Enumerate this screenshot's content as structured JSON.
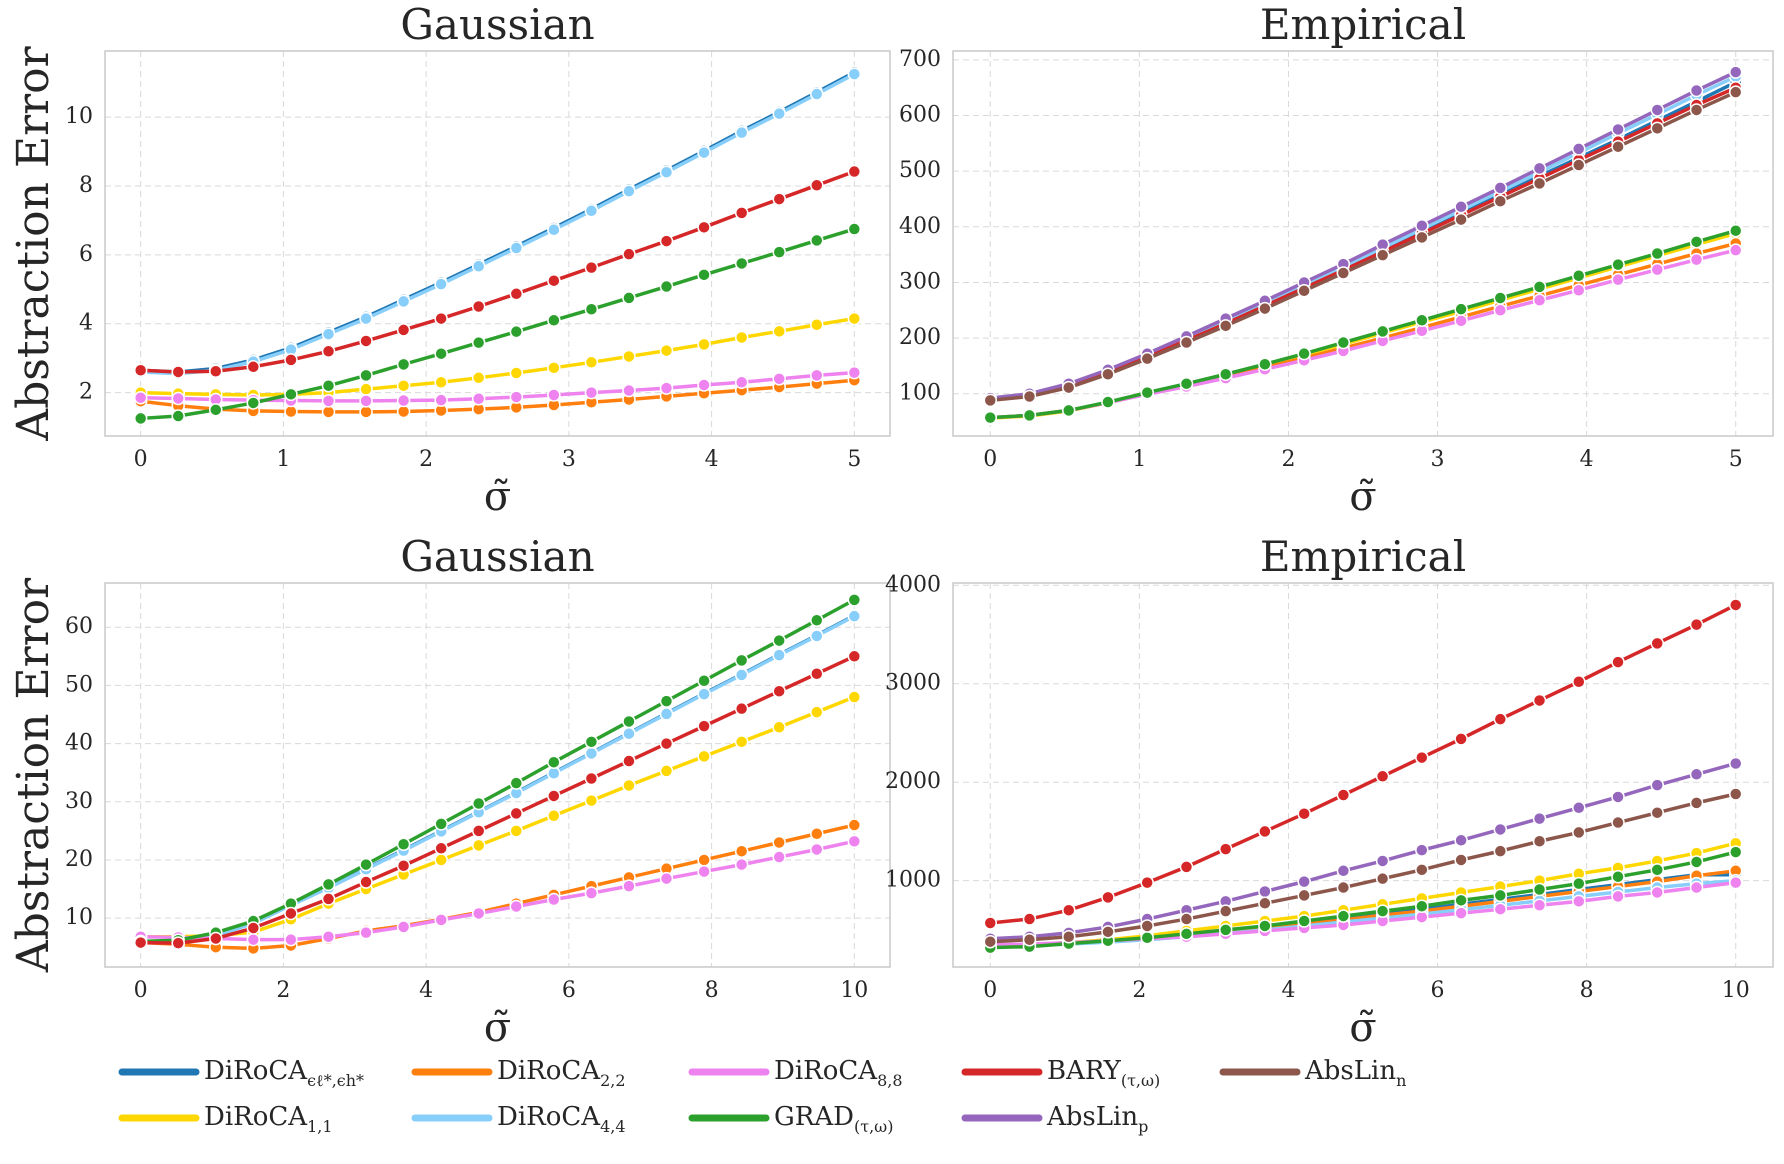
{
  "legend": [
    {
      "name": "DiRoCA",
      "sub": "ϵℓ*,ϵh*",
      "color": "#1f77b4"
    },
    {
      "name": "DiRoCA",
      "sub": "1,1",
      "color": "#ffd700"
    },
    {
      "name": "DiRoCA",
      "sub": "2,2",
      "color": "#ff7f0e"
    },
    {
      "name": "DiRoCA",
      "sub": "4,4",
      "color": "#87cefa"
    },
    {
      "name": "DiRoCA",
      "sub": "8,8",
      "color": "#ee82ee"
    },
    {
      "name": "GRAD",
      "sub": "(τ,ω)",
      "color": "#2ca02c"
    },
    {
      "name": "BARY",
      "sub": "(τ,ω)",
      "color": "#d62728"
    },
    {
      "name": "AbsLin",
      "sub": "p",
      "color": "#9467bd"
    },
    {
      "name": "AbsLin",
      "sub": "n",
      "color": "#8c564b"
    }
  ],
  "chart_data": [
    {
      "type": "line",
      "title": "Gaussian",
      "x_label": "σ̃",
      "y_label": "Abstraction Error",
      "x": [
        0,
        0.263,
        0.526,
        0.789,
        1.053,
        1.316,
        1.579,
        1.842,
        2.105,
        2.368,
        2.632,
        2.895,
        3.158,
        3.421,
        3.684,
        3.947,
        4.211,
        4.474,
        4.737,
        5
      ],
      "xlim": [
        -0.25,
        5.25
      ],
      "xticks": [
        0,
        1,
        2,
        3,
        4,
        5
      ],
      "ylim": [
        0.74,
        11.92
      ],
      "yticks": [
        2,
        4,
        6,
        8,
        10
      ],
      "grid": true,
      "series": [
        {
          "color": "#1f77b4",
          "values": [
            2.65,
            2.6,
            2.7,
            2.95,
            3.3,
            3.75,
            4.2,
            4.7,
            5.2,
            5.72,
            6.25,
            6.78,
            7.33,
            7.9,
            8.45,
            9.02,
            9.6,
            10.15,
            10.72,
            11.3
          ]
        },
        {
          "color": "#ffd700",
          "values": [
            2.0,
            1.97,
            1.95,
            1.93,
            1.95,
            2.0,
            2.1,
            2.2,
            2.3,
            2.43,
            2.57,
            2.72,
            2.88,
            3.05,
            3.22,
            3.4,
            3.6,
            3.78,
            3.97,
            4.15
          ]
        },
        {
          "color": "#ff7f0e",
          "values": [
            1.75,
            1.62,
            1.52,
            1.47,
            1.45,
            1.44,
            1.44,
            1.45,
            1.48,
            1.52,
            1.57,
            1.64,
            1.72,
            1.8,
            1.89,
            1.98,
            2.07,
            2.16,
            2.26,
            2.36
          ]
        },
        {
          "color": "#87cefa",
          "values": [
            2.6,
            2.55,
            2.65,
            2.9,
            3.25,
            3.7,
            4.15,
            4.65,
            5.15,
            5.67,
            6.2,
            6.73,
            7.28,
            7.85,
            8.4,
            8.97,
            9.55,
            10.1,
            10.67,
            11.25
          ]
        },
        {
          "color": "#ee82ee",
          "values": [
            1.85,
            1.83,
            1.8,
            1.78,
            1.77,
            1.76,
            1.76,
            1.77,
            1.78,
            1.82,
            1.87,
            1.93,
            2.0,
            2.06,
            2.13,
            2.22,
            2.3,
            2.4,
            2.5,
            2.58
          ]
        },
        {
          "color": "#2ca02c",
          "values": [
            1.25,
            1.32,
            1.5,
            1.7,
            1.95,
            2.2,
            2.5,
            2.82,
            3.13,
            3.45,
            3.77,
            4.1,
            4.42,
            4.75,
            5.08,
            5.42,
            5.75,
            6.08,
            6.42,
            6.75
          ]
        },
        {
          "color": "#d62728",
          "values": [
            2.65,
            2.6,
            2.62,
            2.75,
            2.95,
            3.2,
            3.5,
            3.82,
            4.15,
            4.5,
            4.87,
            5.25,
            5.63,
            6.02,
            6.4,
            6.8,
            7.22,
            7.62,
            8.02,
            8.42
          ]
        }
      ]
    },
    {
      "type": "line",
      "title": "Empirical",
      "x_label": "σ̃",
      "x": [
        0,
        0.263,
        0.526,
        0.789,
        1.053,
        1.316,
        1.579,
        1.842,
        2.105,
        2.368,
        2.632,
        2.895,
        3.158,
        3.421,
        3.684,
        3.947,
        4.211,
        4.474,
        4.737,
        5
      ],
      "xlim": [
        -0.25,
        5.25
      ],
      "xticks": [
        0,
        1,
        2,
        3,
        4,
        5
      ],
      "ylim": [
        24,
        716
      ],
      "yticks": [
        100,
        200,
        300,
        400,
        500,
        600,
        700
      ],
      "grid": true,
      "series": [
        {
          "color": "#1f77b4",
          "values": [
            90,
            97,
            114,
            139,
            167,
            197,
            228,
            260,
            292,
            325,
            358,
            391,
            424,
            457,
            491,
            524,
            557,
            591,
            625,
            660
          ]
        },
        {
          "color": "#ffd700",
          "values": [
            56,
            60,
            69,
            84,
            100,
            116,
            133,
            151,
            170,
            189,
            209,
            229,
            248,
            268,
            288,
            308,
            328,
            348,
            368,
            388
          ]
        },
        {
          "color": "#ff7f0e",
          "values": [
            57,
            61,
            70,
            84,
            100,
            115,
            131,
            147,
            164,
            182,
            200,
            219,
            238,
            257,
            276,
            295,
            314,
            333,
            352,
            370
          ]
        },
        {
          "color": "#87cefa",
          "values": [
            90,
            98,
            115,
            140,
            168,
            199,
            230,
            262,
            295,
            328,
            362,
            396,
            430,
            464,
            498,
            533,
            568,
            602,
            637,
            670
          ]
        },
        {
          "color": "#ee82ee",
          "values": [
            57,
            61,
            70,
            84,
            99,
            113,
            128,
            144,
            160,
            177,
            195,
            213,
            231,
            250,
            268,
            286,
            305,
            323,
            341,
            358
          ]
        },
        {
          "color": "#2ca02c",
          "values": [
            57,
            61,
            70,
            85,
            102,
            118,
            135,
            153,
            172,
            192,
            212,
            232,
            252,
            272,
            292,
            312,
            332,
            352,
            373,
            393
          ]
        },
        {
          "color": "#d62728",
          "values": [
            89,
            96,
            113,
            138,
            166,
            196,
            226,
            258,
            290,
            322,
            355,
            388,
            421,
            454,
            487,
            520,
            553,
            586,
            619,
            650
          ]
        },
        {
          "color": "#9467bd",
          "values": [
            92,
            100,
            118,
            143,
            172,
            203,
            235,
            267,
            300,
            333,
            368,
            402,
            436,
            470,
            505,
            540,
            575,
            610,
            645,
            678
          ]
        },
        {
          "color": "#8c564b",
          "values": [
            88,
            95,
            111,
            135,
            163,
            192,
            222,
            253,
            285,
            317,
            349,
            381,
            413,
            446,
            478,
            511,
            544,
            577,
            610,
            642
          ]
        }
      ]
    },
    {
      "type": "line",
      "title": "Gaussian",
      "x_label": "σ̃",
      "y_label": "Abstraction Error",
      "x": [
        0,
        0.526,
        1.053,
        1.579,
        2.105,
        2.632,
        3.158,
        3.684,
        4.211,
        4.737,
        5.263,
        5.789,
        6.316,
        6.842,
        7.368,
        7.895,
        8.421,
        8.947,
        9.474,
        10
      ],
      "xlim": [
        -0.5,
        10.5
      ],
      "xticks": [
        0,
        2,
        4,
        6,
        8,
        10
      ],
      "ylim": [
        1.6,
        67.6
      ],
      "yticks": [
        10,
        20,
        30,
        40,
        50,
        60
      ],
      "grid": true,
      "series": [
        {
          "color": "#1f77b4",
          "values": [
            5.8,
            5.9,
            7,
            9.2,
            12.3,
            15.3,
            18.5,
            21.7,
            25,
            28.3,
            31.6,
            35,
            38.4,
            41.8,
            45.2,
            48.6,
            51.9,
            55.3,
            58.6,
            62
          ]
        },
        {
          "color": "#ffd700",
          "values": [
            6.8,
            6.8,
            7,
            7.6,
            9.8,
            12.5,
            15,
            17.5,
            20,
            22.5,
            25,
            27.6,
            30.2,
            32.8,
            35.3,
            37.8,
            40.3,
            42.8,
            45.4,
            48
          ]
        },
        {
          "color": "#ff7f0e",
          "values": [
            5.8,
            5.5,
            5,
            4.8,
            5.3,
            6.5,
            7.8,
            8.7,
            9.8,
            11,
            12.5,
            14,
            15.5,
            17,
            18.5,
            20,
            21.5,
            23,
            24.5,
            26
          ]
        },
        {
          "color": "#87cefa",
          "values": [
            5.8,
            5.9,
            7,
            9.1,
            12.2,
            15.2,
            18.4,
            21.6,
            24.9,
            28.2,
            31.5,
            34.9,
            38.3,
            41.7,
            45.1,
            48.5,
            51.8,
            55.2,
            58.5,
            61.9
          ]
        },
        {
          "color": "#ee82ee",
          "values": [
            6.8,
            6.7,
            6.5,
            6.3,
            6.3,
            6.8,
            7.5,
            8.5,
            9.7,
            10.8,
            12,
            13.2,
            14.3,
            15.5,
            16.8,
            18,
            19.2,
            20.5,
            21.8,
            23.2
          ]
        },
        {
          "color": "#2ca02c",
          "values": [
            6,
            6.2,
            7.5,
            9.5,
            12.5,
            15.8,
            19.2,
            22.7,
            26.2,
            29.7,
            33.2,
            36.8,
            40.3,
            43.8,
            47.3,
            50.8,
            54.3,
            57.7,
            61.2,
            64.7
          ]
        },
        {
          "color": "#d62728",
          "values": [
            5.8,
            5.7,
            6.5,
            8.3,
            10.8,
            13.3,
            16.2,
            19,
            22,
            25,
            28,
            31,
            34,
            37,
            40,
            43,
            46,
            49,
            52,
            55
          ]
        }
      ]
    },
    {
      "type": "line",
      "title": "Empirical",
      "x_label": "σ̃",
      "x": [
        0,
        0.526,
        1.053,
        1.579,
        2.105,
        2.632,
        3.158,
        3.684,
        4.211,
        4.737,
        5.263,
        5.789,
        6.316,
        6.842,
        7.368,
        7.895,
        8.421,
        8.947,
        9.474,
        10
      ],
      "xlim": [
        -0.5,
        10.5
      ],
      "xticks": [
        0,
        2,
        4,
        6,
        8,
        10
      ],
      "ylim": [
        123,
        4023
      ],
      "yticks": [
        1000,
        2000,
        3000,
        4000
      ],
      "grid": true,
      "series": [
        {
          "color": "#1f77b4",
          "values": [
            340,
            350,
            365,
            390,
            420,
            455,
            495,
            535,
            575,
            620,
            665,
            710,
            760,
            810,
            860,
            910,
            960,
            1010,
            1060,
            1060
          ]
        },
        {
          "color": "#ffd700",
          "values": [
            340,
            350,
            370,
            400,
            440,
            490,
            540,
            590,
            640,
            700,
            760,
            820,
            880,
            940,
            1000,
            1070,
            1130,
            1200,
            1280,
            1380
          ]
        },
        {
          "color": "#ff7f0e",
          "values": [
            340,
            345,
            360,
            380,
            410,
            440,
            480,
            520,
            560,
            600,
            650,
            690,
            740,
            790,
            840,
            890,
            940,
            990,
            1050,
            1100
          ]
        },
        {
          "color": "#87cefa",
          "values": [
            335,
            340,
            355,
            375,
            400,
            430,
            465,
            500,
            540,
            580,
            620,
            660,
            705,
            750,
            795,
            840,
            885,
            930,
            970,
            1000
          ]
        },
        {
          "color": "#ee82ee",
          "values": [
            350,
            355,
            370,
            390,
            410,
            430,
            460,
            490,
            520,
            550,
            590,
            630,
            670,
            710,
            750,
            790,
            840,
            880,
            930,
            980
          ]
        },
        {
          "color": "#2ca02c",
          "values": [
            320,
            330,
            360,
            390,
            420,
            460,
            500,
            540,
            590,
            640,
            690,
            740,
            800,
            850,
            910,
            970,
            1040,
            1110,
            1190,
            1290
          ]
        },
        {
          "color": "#d62728",
          "values": [
            570,
            610,
            700,
            830,
            980,
            1140,
            1320,
            1500,
            1680,
            1870,
            2060,
            2250,
            2440,
            2640,
            2830,
            3020,
            3220,
            3410,
            3600,
            3800
          ]
        },
        {
          "color": "#9467bd",
          "values": [
            410,
            430,
            470,
            530,
            610,
            700,
            790,
            890,
            990,
            1100,
            1200,
            1310,
            1410,
            1520,
            1630,
            1740,
            1850,
            1970,
            2080,
            2190
          ]
        },
        {
          "color": "#8c564b",
          "values": [
            380,
            400,
            430,
            480,
            540,
            610,
            690,
            770,
            850,
            930,
            1020,
            1110,
            1210,
            1300,
            1400,
            1490,
            1590,
            1690,
            1790,
            1880
          ]
        }
      ]
    }
  ]
}
